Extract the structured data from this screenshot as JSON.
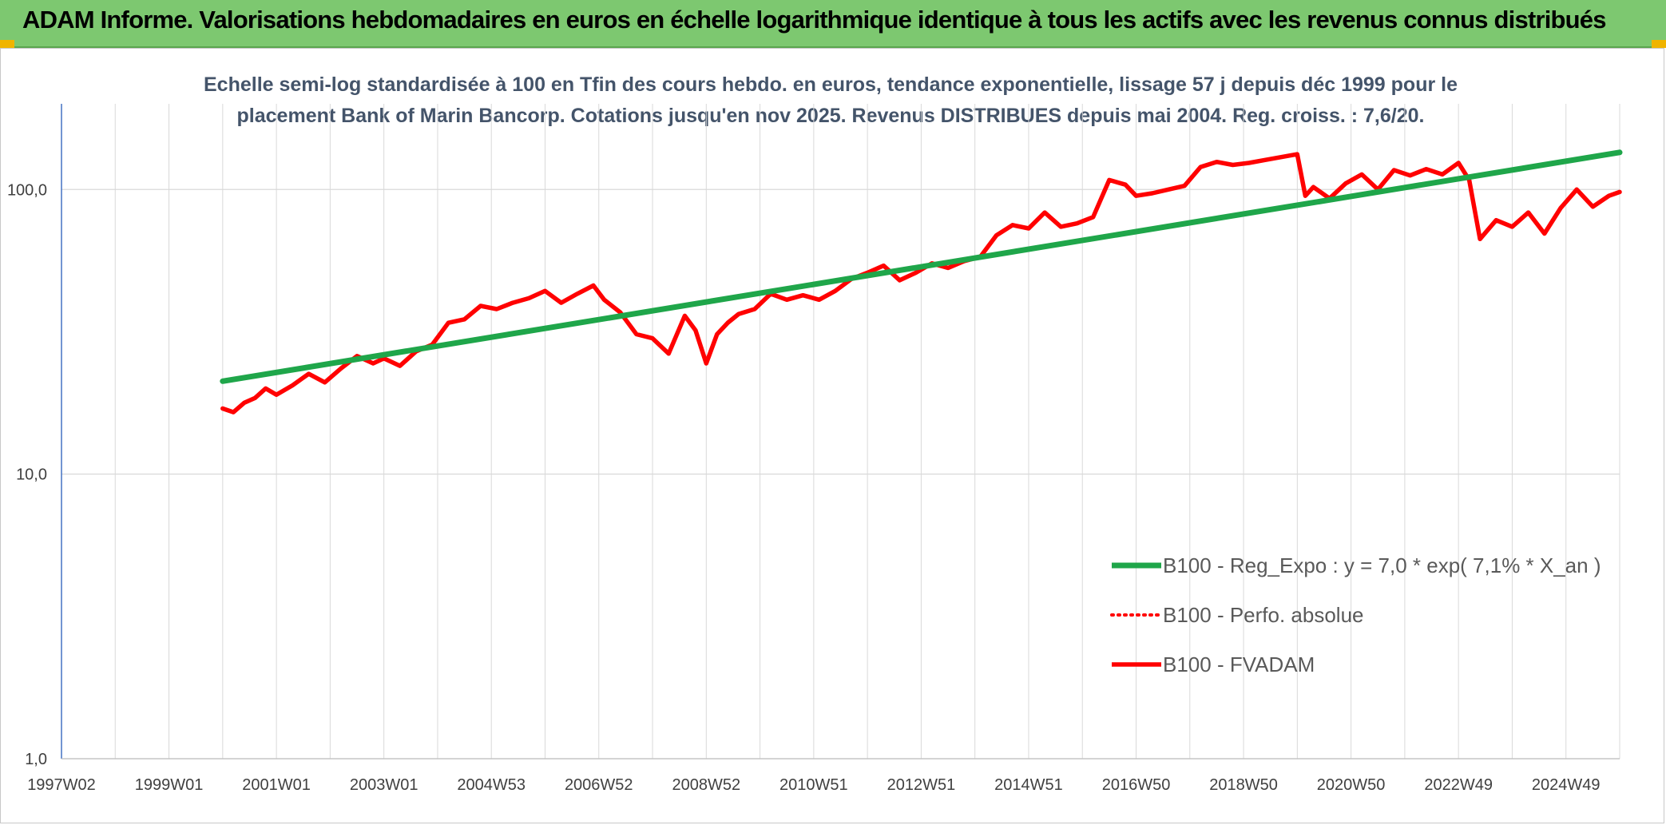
{
  "header": {
    "title": "ADAM Informe. Valorisations hebdomadaires en euros en échelle logarithmique identique à tous les actifs avec les revenus connus distribués"
  },
  "colors": {
    "header_bg": "#7dc870",
    "accent_corner": "#f0b400",
    "trend": "#1fa64a",
    "price": "#ff0000"
  },
  "chart_data": {
    "type": "line",
    "title": "",
    "subtitle_lines": [
      "Echelle semi-log standardisée à 100 en Tfin des cours hebdo. en euros, tendance exponentielle, lissage 57 j depuis déc 1999 pour le",
      "placement Bank of Marin Bancorp. Cotations jusqu'en nov 2025. Revenus DISTRIBUES depuis mai 2004. Reg. croiss. : 7,6/20."
    ],
    "y_scale": "log",
    "ylim": [
      1,
      200
    ],
    "y_ticks": [
      {
        "value": 1,
        "label": "1,0"
      },
      {
        "value": 10,
        "label": "10,0"
      },
      {
        "value": 100,
        "label": "100,0"
      }
    ],
    "xlim": [
      1997.0,
      2026.0
    ],
    "x_ticks": [
      {
        "value": 1997.0,
        "label": "1997W02"
      },
      {
        "value": 1999.0,
        "label": "1999W01"
      },
      {
        "value": 2001.0,
        "label": "2001W01"
      },
      {
        "value": 2003.0,
        "label": "2003W01"
      },
      {
        "value": 2005.0,
        "label": "2004W53"
      },
      {
        "value": 2007.0,
        "label": "2006W52"
      },
      {
        "value": 2009.0,
        "label": "2008W52"
      },
      {
        "value": 2011.0,
        "label": "2010W51"
      },
      {
        "value": 2013.0,
        "label": "2012W51"
      },
      {
        "value": 2015.0,
        "label": "2014W51"
      },
      {
        "value": 2017.0,
        "label": "2016W50"
      },
      {
        "value": 2019.0,
        "label": "2018W50"
      },
      {
        "value": 2021.0,
        "label": "2020W50"
      },
      {
        "value": 2023.0,
        "label": "2022W49"
      },
      {
        "value": 2025.0,
        "label": "2024W49"
      }
    ],
    "grid": true,
    "legend_position": "bottom-right",
    "series": [
      {
        "name": "B100 - Reg_Expo : y = 7,0 * exp( 7,1% *  X_an )",
        "style": "solid-thick",
        "color": "#1fa64a",
        "x": [
          2000.0,
          2026.0
        ],
        "y": [
          21.2,
          135.0
        ]
      },
      {
        "name": "B100 - Perfo. absolue",
        "style": "dotted",
        "color": "#ff0000",
        "x": [],
        "y": []
      },
      {
        "name": "B100 - FVADAM",
        "style": "solid",
        "color": "#ff0000",
        "x": [
          2000.0,
          2000.2,
          2000.4,
          2000.6,
          2000.8,
          2001.0,
          2001.3,
          2001.6,
          2001.9,
          2002.2,
          2002.5,
          2002.8,
          2003.0,
          2003.3,
          2003.6,
          2003.9,
          2004.2,
          2004.5,
          2004.8,
          2005.1,
          2005.4,
          2005.7,
          2006.0,
          2006.3,
          2006.6,
          2006.9,
          2007.1,
          2007.4,
          2007.7,
          2008.0,
          2008.3,
          2008.6,
          2008.8,
          2009.0,
          2009.2,
          2009.4,
          2009.6,
          2009.9,
          2010.2,
          2010.5,
          2010.8,
          2011.1,
          2011.4,
          2011.7,
          2012.0,
          2012.3,
          2012.6,
          2012.9,
          2013.2,
          2013.5,
          2013.8,
          2014.1,
          2014.4,
          2014.7,
          2015.0,
          2015.3,
          2015.6,
          2015.9,
          2016.2,
          2016.5,
          2016.8,
          2017.0,
          2017.3,
          2017.6,
          2017.9,
          2018.2,
          2018.5,
          2018.8,
          2019.1,
          2019.4,
          2019.7,
          2020.0,
          2020.15,
          2020.3,
          2020.6,
          2020.9,
          2021.2,
          2021.5,
          2021.8,
          2022.1,
          2022.4,
          2022.7,
          2023.0,
          2023.2,
          2023.4,
          2023.7,
          2024.0,
          2024.3,
          2024.6,
          2024.9,
          2025.2,
          2025.5,
          2025.8,
          2026.0
        ],
        "y": [
          17.0,
          16.5,
          17.8,
          18.5,
          20.0,
          19.0,
          20.5,
          22.5,
          21.0,
          23.5,
          26.0,
          24.5,
          25.5,
          24.0,
          27.0,
          28.5,
          34.0,
          35.0,
          39.0,
          38.0,
          40.0,
          41.5,
          44.0,
          40.0,
          43.0,
          46.0,
          41.0,
          37.0,
          31.0,
          30.0,
          26.5,
          36.0,
          32.0,
          24.5,
          31.0,
          34.0,
          36.5,
          38.0,
          43.0,
          41.0,
          42.5,
          41.0,
          44.0,
          48.5,
          51.0,
          54.0,
          48.0,
          51.0,
          55.0,
          53.0,
          56.0,
          58.0,
          69.0,
          75.0,
          73.0,
          83.0,
          74.0,
          76.0,
          80.0,
          108.0,
          104.0,
          95.0,
          97.0,
          100.0,
          103.0,
          120.0,
          125.0,
          122.0,
          124.0,
          127.0,
          130.0,
          133.0,
          95.0,
          102.0,
          93.0,
          105.0,
          113.0,
          100.0,
          117.0,
          112.0,
          118.0,
          113.0,
          124.0,
          108.0,
          67.0,
          78.0,
          74.0,
          83.0,
          70.0,
          86.0,
          100.0,
          87.0,
          95.0,
          98.0
        ]
      }
    ]
  }
}
